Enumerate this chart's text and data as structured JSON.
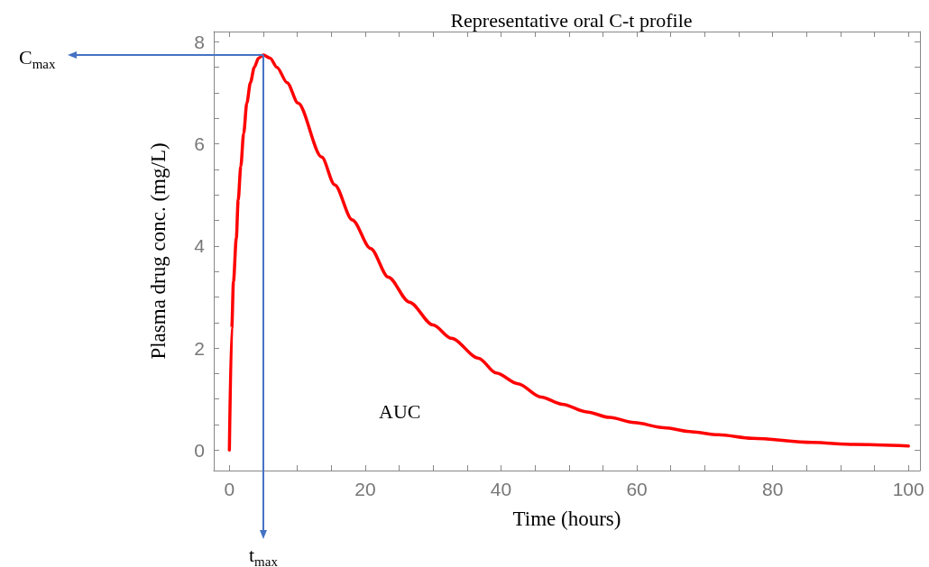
{
  "chart_data": {
    "type": "line",
    "title": "Representative oral C-t profile",
    "xlabel": "Time (hours)",
    "ylabel": "Plasma drug conc. (mg/L)",
    "series": [
      {
        "color": "#ff0000",
        "x": [
          0,
          0.35,
          0.6,
          1.02,
          1.3,
          1.68,
          2.1,
          2.57,
          3.1,
          3.67,
          4.3,
          5,
          6,
          7,
          8.5,
          10.1,
          13.6,
          15.5,
          18.1,
          20.8,
          23.4,
          26.5,
          30,
          32.7,
          36.7,
          39.3,
          42.5,
          45.9,
          49,
          52.6,
          56,
          59.6,
          64,
          68.1,
          72,
          77,
          85.8,
          92,
          100
        ],
        "values": [
          0,
          2.39,
          3.3,
          4.15,
          4.9,
          5.56,
          6.2,
          6.8,
          7.2,
          7.5,
          7.68,
          7.74,
          7.68,
          7.5,
          7.2,
          6.8,
          5.74,
          5.2,
          4.51,
          3.95,
          3.39,
          2.9,
          2.45,
          2.19,
          1.8,
          1.51,
          1.3,
          1.04,
          0.9,
          0.75,
          0.64,
          0.54,
          0.44,
          0.36,
          0.3,
          0.23,
          0.15,
          0.11,
          0.08
        ]
      }
    ],
    "xlim": [
      -2.3,
      101.7
    ],
    "ylim": [
      -0.4,
      8.2
    ],
    "xticks": [
      0,
      {
        "value": 5,
        "label": null
      },
      {
        "value": 10,
        "label": null
      },
      {
        "value": 15,
        "label": null
      },
      20,
      {
        "value": 25,
        "label": null
      },
      {
        "value": 30,
        "label": null
      },
      {
        "value": 35,
        "label": null
      },
      40,
      {
        "value": 45,
        "label": null
      },
      {
        "value": 50,
        "label": null
      },
      {
        "value": 55,
        "label": null
      },
      60,
      {
        "value": 65,
        "label": null
      },
      {
        "value": 70,
        "label": null
      },
      {
        "value": 75,
        "label": null
      },
      80,
      {
        "value": 85,
        "label": null
      },
      {
        "value": 90,
        "label": null
      },
      {
        "value": 95,
        "label": null
      },
      100
    ],
    "yticks": [
      0,
      {
        "value": 0.5,
        "label": null
      },
      {
        "value": 1,
        "label": null
      },
      {
        "value": 1.5,
        "label": null
      },
      2,
      {
        "value": 2.5,
        "label": null
      },
      {
        "value": 3,
        "label": null
      },
      {
        "value": 3.5,
        "label": null
      },
      4,
      {
        "value": 4.5,
        "label": null
      },
      {
        "value": 5,
        "label": null
      },
      {
        "value": 5.5,
        "label": null
      },
      6,
      {
        "value": 6.5,
        "label": null
      },
      {
        "value": 7,
        "label": null
      },
      {
        "value": 7.5,
        "label": null
      },
      8
    ],
    "ref_lines": [
      {
        "axis": "y",
        "value": 7.74,
        "label": "C$_{max}$",
        "color": "#4472c4"
      },
      {
        "axis": "x",
        "value": 5,
        "label": "t$_{max}$",
        "color": "#4472c4"
      }
    ],
    "annotations": [
      "AUC"
    ]
  }
}
